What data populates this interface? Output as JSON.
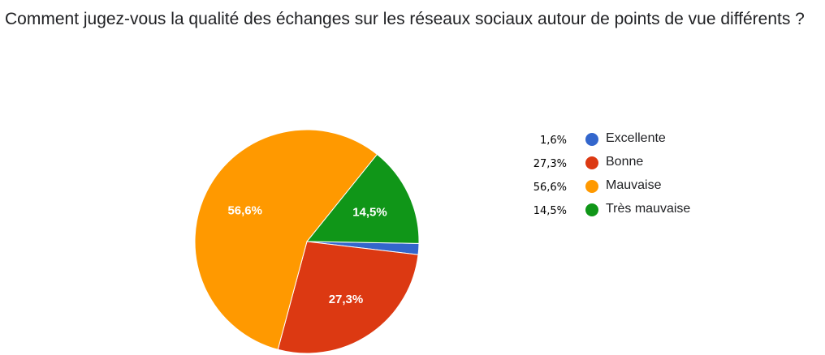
{
  "question": {
    "title": "Comment jugez-vous la qualité des échanges sur les réseaux sociaux autour de points de vue différents ?"
  },
  "chart_data": {
    "type": "pie",
    "categories": [
      "Excellente",
      "Bonne",
      "Mauvaise",
      "Très mauvaise"
    ],
    "values": [
      1.6,
      27.3,
      56.6,
      14.5
    ],
    "labels": [
      "1,6%",
      "27,3%",
      "56,6%",
      "14,5%"
    ],
    "colors": [
      "#3366cc",
      "#dc3912",
      "#ff9900",
      "#109618"
    ],
    "slice_labels_shown": [
      "",
      "27,3%",
      "56,6%",
      "14,5%"
    ],
    "legend_position": "right",
    "legend_percent_labels": [
      "1,6%",
      "27,3%",
      "56,6%",
      "14,5%"
    ]
  }
}
